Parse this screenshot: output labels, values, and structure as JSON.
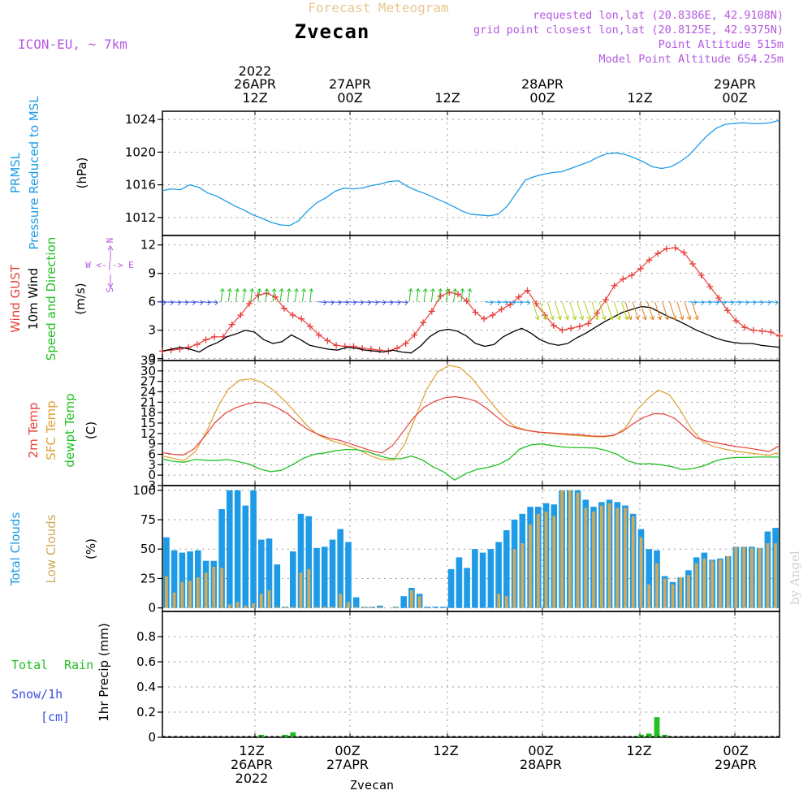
{
  "header": {
    "title": "Forecast Meteogram",
    "location": "Zvecan",
    "model": "ICON-EU, ~ 7km",
    "requested": "requested lon,lat (20.8386E, 42.9108N)",
    "grid_point": "grid point closest lon,lat (20.8125E, 42.9375N)",
    "point_altitude": "Point Altitude 515m",
    "model_altitude": "Model Point Altitude 654.25m",
    "footer_location": "Zvecan",
    "watermark": "by Angel"
  },
  "colors": {
    "pressure": "#1e9be6",
    "gust": "#e8413c",
    "wind": "#000000",
    "temp2m": "#e8413c",
    "sfc": "#e0a030",
    "dewpt": "#22c022",
    "total_clouds": "#1e9be6",
    "low_clouds": "#d0aa5a",
    "precip": "#22c022",
    "grid": "#999999",
    "purple_text": "#b458e0",
    "title_text": "#e8c890"
  },
  "time_axis": {
    "top_ticks": [
      {
        "lines": [
          "2022",
          "26APR",
          "12Z"
        ]
      },
      {
        "lines": [
          "27APR",
          "00Z"
        ]
      },
      {
        "lines": [
          "12Z"
        ]
      },
      {
        "lines": [
          "28APR",
          "00Z"
        ]
      },
      {
        "lines": [
          "12Z"
        ]
      },
      {
        "lines": [
          "29APR",
          "00Z"
        ]
      }
    ],
    "bottom_ticks": [
      {
        "lines": [
          "12Z",
          "26APR",
          "2022"
        ]
      },
      {
        "lines": [
          "00Z",
          "27APR"
        ]
      },
      {
        "lines": [
          "12Z"
        ]
      },
      {
        "lines": [
          "00Z",
          "28APR"
        ]
      },
      {
        "lines": [
          "12Z"
        ]
      },
      {
        "lines": [
          "00Z",
          "29APR"
        ]
      }
    ]
  },
  "chart_data": [
    {
      "type": "line",
      "name": "pressure",
      "labels": {
        "l1": "PRMSL",
        "l2": "Pressure Reduced to MSL",
        "unit": "(hPa)"
      },
      "ylim": [
        1009.8,
        1025.0
      ],
      "yticks": [
        1012,
        1016,
        1020,
        1024
      ],
      "yticklabels": [
        "1012",
        "1016",
        "1020",
        "1024"
      ],
      "series": [
        {
          "name": "PRMSL",
          "values": [
            1015.3,
            1015.5,
            1015.4,
            1016.0,
            1015.7,
            1015.0,
            1014.6,
            1014.0,
            1013.4,
            1012.9,
            1012.3,
            1011.9,
            1011.4,
            1011.1,
            1011.0,
            1011.6,
            1012.8,
            1013.8,
            1014.4,
            1015.2,
            1015.6,
            1015.5,
            1015.6,
            1015.9,
            1016.1,
            1016.4,
            1016.5,
            1015.8,
            1015.3,
            1014.9,
            1014.4,
            1013.9,
            1013.4,
            1012.8,
            1012.4,
            1012.3,
            1012.2,
            1012.4,
            1013.4,
            1015.0,
            1016.6,
            1017.0,
            1017.3,
            1017.5,
            1017.6,
            1018.0,
            1018.4,
            1018.8,
            1019.4,
            1019.8,
            1019.9,
            1019.7,
            1019.3,
            1018.8,
            1018.2,
            1018.0,
            1018.2,
            1018.8,
            1019.6,
            1020.8,
            1022.0,
            1022.9,
            1023.4,
            1023.5,
            1023.6,
            1023.5,
            1023.5,
            1023.6,
            1023.9
          ]
        }
      ]
    },
    {
      "type": "line",
      "name": "wind",
      "labels": {
        "l1": "Wind GUST",
        "l2": "10m Wind",
        "l3": "Speed and Direction",
        "unit": "(m/s)",
        "compass": [
          "N",
          "W <-|-> E",
          "S"
        ]
      },
      "ylim": [
        -0.2,
        13.0
      ],
      "yticks": [
        0,
        3,
        6,
        9,
        12
      ],
      "yticklabels": [
        "0",
        "3",
        "6",
        "9",
        "12"
      ],
      "series": [
        {
          "name": "Wind GUST",
          "values": [
            0.8,
            0.9,
            1.0,
            1.2,
            1.5,
            2.0,
            2.3,
            2.3,
            3.6,
            4.6,
            5.8,
            6.7,
            6.9,
            6.5,
            5.3,
            4.6,
            4.2,
            3.4,
            2.5,
            1.9,
            1.4,
            1.3,
            1.3,
            1.1,
            1.0,
            0.9,
            0.8,
            1.1,
            1.6,
            2.5,
            3.8,
            5.0,
            6.6,
            7.0,
            6.8,
            6.1,
            4.9,
            4.2,
            4.6,
            5.2,
            5.7,
            6.5,
            7.2,
            5.8,
            4.6,
            3.5,
            3.0,
            3.2,
            3.4,
            3.7,
            4.8,
            6.2,
            7.7,
            8.4,
            8.8,
            9.5,
            10.4,
            11.1,
            11.6,
            11.7,
            11.2,
            10.0,
            8.8,
            7.6,
            6.4,
            5.1,
            4.0,
            3.3,
            3.0,
            2.9,
            2.8,
            2.4
          ]
        },
        {
          "name": "10m Wind",
          "values": [
            0.8,
            1.0,
            1.2,
            1.0,
            0.7,
            1.3,
            1.7,
            2.3,
            2.6,
            3.0,
            2.8,
            2.0,
            1.6,
            1.8,
            2.5,
            2.0,
            1.4,
            1.2,
            1.0,
            0.9,
            1.2,
            1.1,
            0.9,
            0.8,
            0.7,
            0.9,
            0.7,
            0.6,
            1.3,
            2.3,
            2.9,
            3.1,
            2.9,
            2.4,
            1.6,
            1.3,
            1.5,
            2.3,
            2.8,
            3.2,
            2.7,
            2.0,
            1.6,
            1.4,
            1.6,
            2.2,
            2.7,
            3.3,
            3.9,
            4.4,
            4.9,
            5.2,
            5.5,
            5.4,
            4.9,
            4.4,
            4.0,
            3.5,
            3.0,
            2.6,
            2.2,
            1.9,
            1.7,
            1.6,
            1.6,
            1.4,
            1.3,
            1.2
          ]
        }
      ]
    },
    {
      "type": "line",
      "name": "temperature",
      "labels": {
        "l1": "2m Temp",
        "l2": "SFC Temp",
        "l3": "dewpt Temp",
        "unit": "(C)"
      },
      "ylim": [
        -3,
        33
      ],
      "yticks": [
        -3,
        0,
        3,
        6,
        9,
        12,
        15,
        18,
        21,
        24,
        27,
        30,
        33
      ],
      "yticklabels": [
        "-3",
        "0",
        "3",
        "6",
        "9",
        "12",
        "15",
        "18",
        "21",
        "24",
        "27",
        "30",
        "33"
      ],
      "series": [
        {
          "name": "2m Temp",
          "values": [
            6.5,
            6.0,
            5.8,
            7.5,
            11.0,
            15.0,
            17.8,
            19.4,
            20.4,
            21.0,
            20.7,
            19.4,
            17.6,
            15.0,
            13.0,
            11.6,
            10.6,
            10.0,
            9.0,
            8.0,
            7.0,
            6.4,
            8.5,
            12.5,
            16.5,
            19.5,
            21.2,
            22.3,
            22.6,
            22.1,
            21.3,
            19.2,
            16.7,
            14.4,
            13.4,
            12.8,
            12.4,
            12.2,
            12.0,
            11.8,
            11.6,
            11.3,
            11.2,
            11.4,
            12.6,
            14.8,
            16.6,
            17.7,
            17.6,
            16.3,
            13.6,
            10.8,
            9.8,
            9.3,
            8.7,
            8.2,
            7.8,
            7.3,
            6.8,
            8.5
          ]
        },
        {
          "name": "SFC Temp",
          "values": [
            5.5,
            4.8,
            4.2,
            6.8,
            12.5,
            19.5,
            24.8,
            27.3,
            27.7,
            26.8,
            24.6,
            21.7,
            18.3,
            14.7,
            11.8,
            10.3,
            9.3,
            8.3,
            7.0,
            5.4,
            4.4,
            4.4,
            9.0,
            17.0,
            24.8,
            29.8,
            31.6,
            31.0,
            28.2,
            24.2,
            20.2,
            16.7,
            14.0,
            13.0,
            12.4,
            12.1,
            11.8,
            11.5,
            11.3,
            11.1,
            11.0,
            11.4,
            13.6,
            18.5,
            21.9,
            24.5,
            23.2,
            18.7,
            13.4,
            9.7,
            8.3,
            7.5,
            6.9,
            6.5,
            6.1,
            5.7,
            6.6
          ]
        },
        {
          "name": "dewpt Temp",
          "values": [
            4.7,
            4.0,
            3.7,
            4.5,
            4.3,
            4.2,
            4.5,
            3.9,
            3.2,
            1.8,
            1.0,
            1.4,
            3.0,
            4.8,
            6.0,
            6.4,
            7.0,
            7.4,
            7.3,
            6.7,
            5.6,
            4.8,
            4.7,
            5.5,
            4.4,
            2.4,
            0.9,
            -1.4,
            0.4,
            1.6,
            2.2,
            3.0,
            4.6,
            7.5,
            8.7,
            9.0,
            8.5,
            8.1,
            7.9,
            7.9,
            7.8,
            7.1,
            6.0,
            4.1,
            3.2,
            3.3,
            3.0,
            2.5,
            1.6,
            1.9,
            2.7,
            4.0,
            4.8,
            5.1,
            5.1,
            5.2,
            5.2,
            5.2
          ]
        }
      ]
    },
    {
      "type": "bar",
      "name": "clouds",
      "labels": {
        "l1": "Total Clouds",
        "l2": "Low Clouds",
        "unit": "(%)"
      },
      "ylim": [
        -3,
        104
      ],
      "yticks": [
        0,
        25,
        50,
        75,
        100
      ],
      "yticklabels": [
        "0",
        "25",
        "50",
        "75",
        "100"
      ],
      "series": [
        {
          "name": "Total Clouds",
          "values": [
            60,
            49,
            47,
            48,
            49,
            40,
            40,
            84,
            100,
            100,
            87,
            100,
            58,
            59,
            37,
            1,
            48,
            80,
            78,
            51,
            52,
            58,
            67,
            56,
            9,
            1,
            1,
            2,
            0,
            1,
            10,
            17,
            12,
            1,
            1,
            1,
            33,
            43,
            34,
            50,
            47,
            50,
            56,
            66,
            75,
            80,
            86,
            86,
            89,
            88,
            100,
            100,
            100,
            92,
            86,
            90,
            92,
            90,
            87,
            80,
            67,
            50,
            49,
            27,
            22,
            26,
            32,
            43,
            47,
            41,
            42,
            44,
            52,
            52,
            52,
            51,
            65,
            68
          ]
        },
        {
          "name": "Low Clouds",
          "values": [
            27,
            13,
            22,
            23,
            26,
            30,
            35,
            34,
            3,
            5,
            2,
            4,
            12,
            15,
            1,
            1,
            1,
            30,
            33,
            1,
            1,
            1,
            12,
            5,
            1,
            1,
            1,
            1,
            0,
            1,
            0,
            15,
            10,
            0,
            0,
            0,
            0,
            0,
            0,
            0,
            0,
            0,
            12,
            10,
            50,
            55,
            71,
            80,
            82,
            78,
            100,
            100,
            98,
            85,
            82,
            87,
            89,
            85,
            85,
            78,
            60,
            20,
            38,
            25,
            20,
            26,
            28,
            38,
            42,
            40,
            41,
            44,
            52,
            52,
            51,
            51,
            55,
            55
          ]
        }
      ]
    },
    {
      "type": "bar",
      "name": "precipitation",
      "labels": {
        "l1": "Total",
        "l1b": "Rain",
        "l2": "Snow/1h",
        "l3": "[cm]",
        "unit": "1hr Precip (mm)"
      },
      "ylim": [
        0,
        1.0
      ],
      "yticks": [
        0,
        0.2,
        0.4,
        0.6,
        0.8
      ],
      "yticklabels": [
        "0",
        "0.2",
        "0.4",
        "0.6",
        "0.8"
      ],
      "series": [
        {
          "name": "Total Rain",
          "values": [
            {
              "i": 12,
              "v": 0.02
            },
            {
              "i": 15,
              "v": 0.02
            },
            {
              "i": 16,
              "v": 0.04
            },
            {
              "i": 60,
              "v": 0.02
            },
            {
              "i": 61,
              "v": 0.03
            },
            {
              "i": 62,
              "v": 0.16
            },
            {
              "i": 63,
              "v": 0.02
            }
          ]
        }
      ]
    }
  ]
}
